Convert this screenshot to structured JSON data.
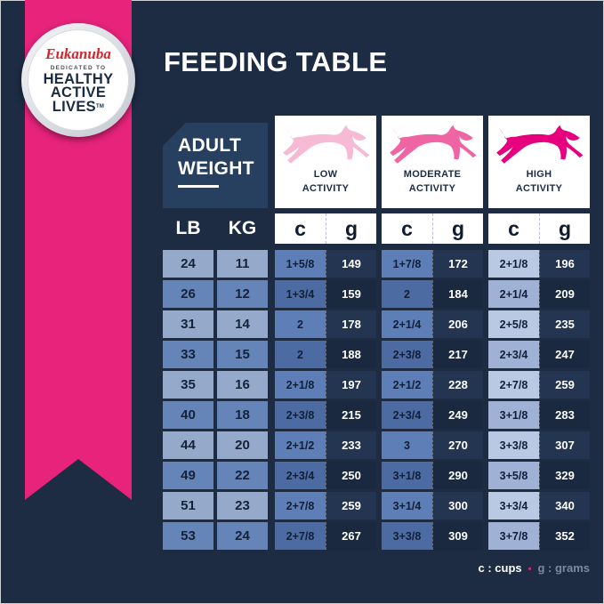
{
  "badge": {
    "brand": "Eukanuba",
    "dedicated": "DEDICATED TO",
    "healthy": "HEALTHY",
    "active": "ACTIVE",
    "lives": "LIVES",
    "tm": "TM"
  },
  "title": "FEEDING TABLE",
  "table": {
    "corner": {
      "line1": "ADULT",
      "line2": "WEIGHT"
    },
    "activities": [
      {
        "line1": "LOW",
        "line2": "ACTIVITY",
        "dog_color": "#f6bad4"
      },
      {
        "line1": "MODERATE",
        "line2": "ACTIVITY",
        "dog_color": "#ef64a2"
      },
      {
        "line1": "HIGH",
        "line2": "ACTIVITY",
        "dog_color": "#e6007e"
      }
    ],
    "units": {
      "lb": "LB",
      "kg": "KG",
      "cups": "c",
      "grams": "g"
    }
  },
  "chart_data": {
    "type": "table",
    "title": "FEEDING TABLE",
    "column_groups": [
      "ADULT WEIGHT",
      "LOW ACTIVITY",
      "MODERATE ACTIVITY",
      "HIGH ACTIVITY"
    ],
    "columns": [
      "LB",
      "KG",
      "LOW c",
      "LOW g",
      "MODERATE c",
      "MODERATE g",
      "HIGH c",
      "HIGH g"
    ],
    "rows": [
      [
        "24",
        "11",
        "1+5/8",
        "149",
        "1+7/8",
        "172",
        "2+1/8",
        "196"
      ],
      [
        "26",
        "12",
        "1+3/4",
        "159",
        "2",
        "184",
        "2+1/4",
        "209"
      ],
      [
        "31",
        "14",
        "2",
        "178",
        "2+1/4",
        "206",
        "2+5/8",
        "235"
      ],
      [
        "33",
        "15",
        "2",
        "188",
        "2+3/8",
        "217",
        "2+3/4",
        "247"
      ],
      [
        "35",
        "16",
        "2+1/8",
        "197",
        "2+1/2",
        "228",
        "2+7/8",
        "259"
      ],
      [
        "40",
        "18",
        "2+3/8",
        "215",
        "2+3/4",
        "249",
        "3+1/8",
        "283"
      ],
      [
        "44",
        "20",
        "2+1/2",
        "233",
        "3",
        "270",
        "3+3/8",
        "307"
      ],
      [
        "49",
        "22",
        "2+3/4",
        "250",
        "3+1/8",
        "290",
        "3+5/8",
        "329"
      ],
      [
        "51",
        "23",
        "2+7/8",
        "259",
        "3+1/4",
        "300",
        "3+3/4",
        "340"
      ],
      [
        "53",
        "24",
        "2+7/8",
        "267",
        "3+3/8",
        "309",
        "3+7/8",
        "352"
      ]
    ],
    "legend": [
      "c : cups",
      "g : grams"
    ]
  },
  "legend": {
    "cups": "c : cups",
    "separator": "•",
    "grams": "g : grams"
  },
  "colors": {
    "accent_pink": "#e7237c",
    "background": "#1d2c43"
  }
}
